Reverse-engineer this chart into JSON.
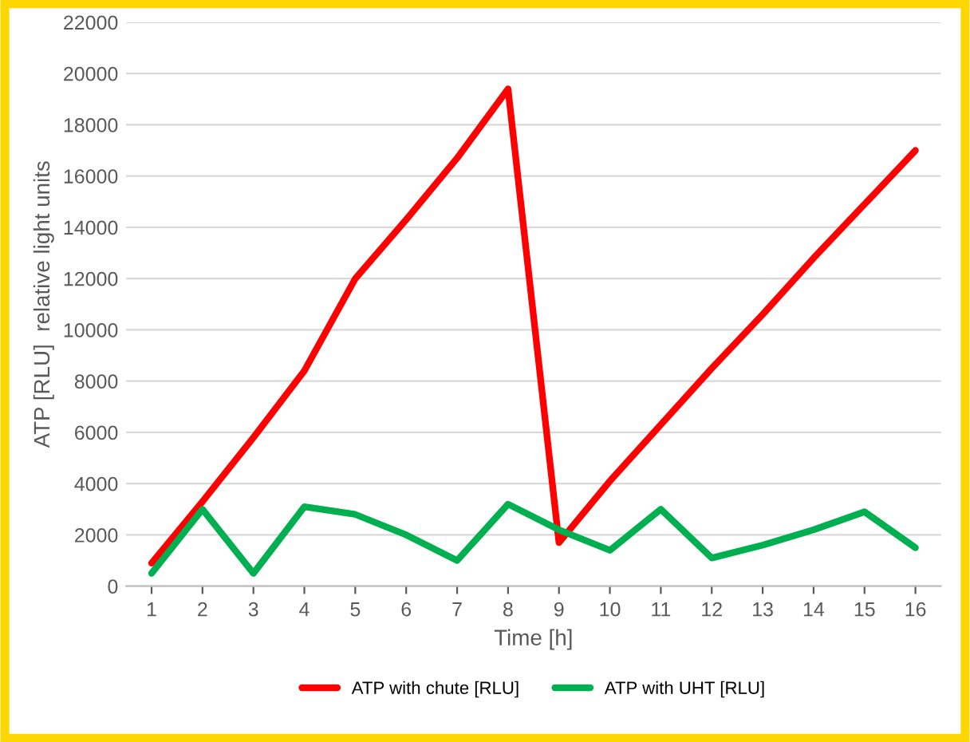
{
  "chart_data": {
    "type": "line",
    "xlabel": "Time [h]",
    "ylabel": "ATP [RLU]  relative light units",
    "categories": [
      "1",
      "2",
      "3",
      "4",
      "5",
      "6",
      "7",
      "8",
      "9",
      "10",
      "11",
      "12",
      "13",
      "14",
      "15",
      "16"
    ],
    "series": [
      {
        "name": "ATP with chute [RLU]",
        "color": "#ff0000",
        "values": [
          900,
          3300,
          5800,
          8400,
          12000,
          14300,
          16700,
          19400,
          1700,
          4100,
          6300,
          8500,
          10600,
          12800,
          14900,
          17000
        ]
      },
      {
        "name": "ATP with UHT [RLU]",
        "color": "#00b050",
        "values": [
          500,
          3000,
          500,
          3100,
          2800,
          2000,
          1000,
          3200,
          2200,
          1400,
          3000,
          1100,
          1600,
          2200,
          2900,
          1500
        ]
      }
    ],
    "ylim": [
      0,
      22000
    ],
    "yticks": [
      0,
      2000,
      4000,
      6000,
      8000,
      10000,
      12000,
      14000,
      16000,
      18000,
      20000,
      22000
    ],
    "grid": "y",
    "legend": "bottom",
    "marker": "none",
    "line_style": "solid"
  }
}
